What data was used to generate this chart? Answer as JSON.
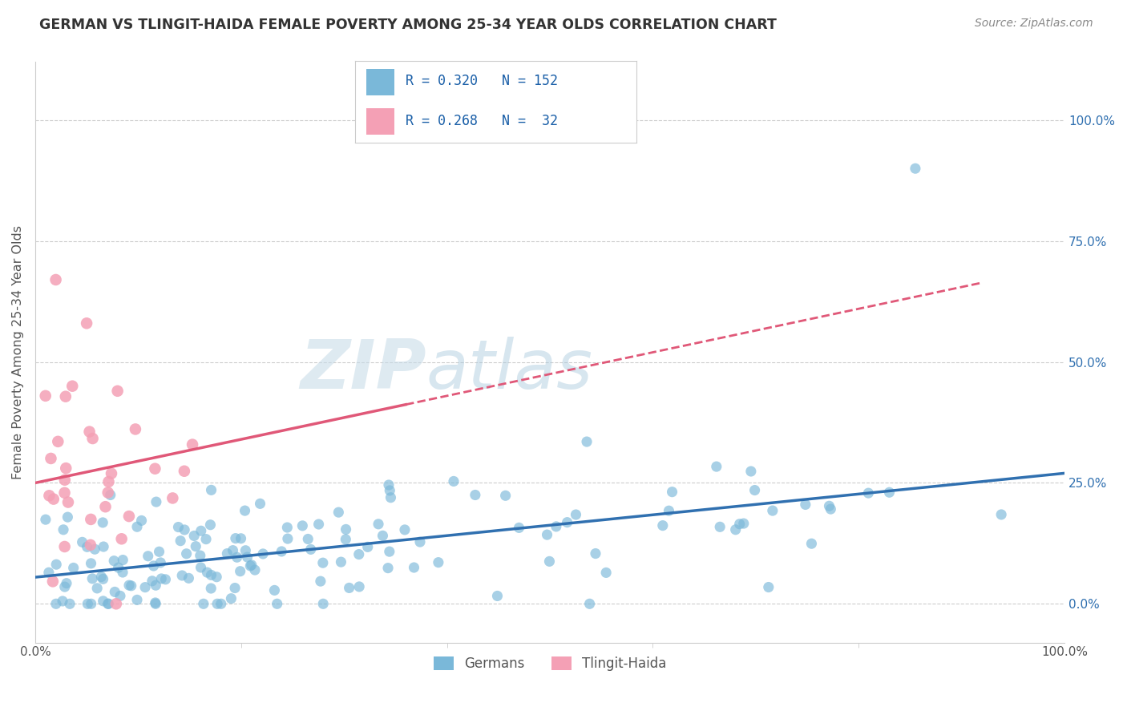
{
  "title": "GERMAN VS TLINGIT-HAIDA FEMALE POVERTY AMONG 25-34 YEAR OLDS CORRELATION CHART",
  "source": "Source: ZipAtlas.com",
  "ylabel": "Female Poverty Among 25-34 Year Olds",
  "xlabel": "",
  "xlim": [
    0,
    1
  ],
  "ylim": [
    -0.08,
    1.12
  ],
  "yticks": [
    0,
    0.25,
    0.5,
    0.75,
    1.0
  ],
  "ytick_labels": [
    "0.0%",
    "25.0%",
    "50.0%",
    "75.0%",
    "100.0%"
  ],
  "xticks": [
    0,
    1
  ],
  "xtick_labels": [
    "0.0%",
    "100.0%"
  ],
  "german_R": 0.32,
  "german_N": 152,
  "tlingit_R": 0.268,
  "tlingit_N": 32,
  "blue_color": "#7ab8d9",
  "pink_color": "#f4a0b5",
  "blue_line_color": "#3070b0",
  "pink_line_color": "#e05878",
  "watermark_color": "#d0e4f0",
  "legend_label_german": "Germans",
  "legend_label_tlingit": "Tlingit-Haida",
  "background_color": "#ffffff",
  "grid_color": "#cccccc",
  "title_color": "#333333",
  "axis_label_color": "#555555",
  "tick_label_color": "#555555",
  "source_color": "#888888",
  "legend_text_color": "#1a5fa8"
}
